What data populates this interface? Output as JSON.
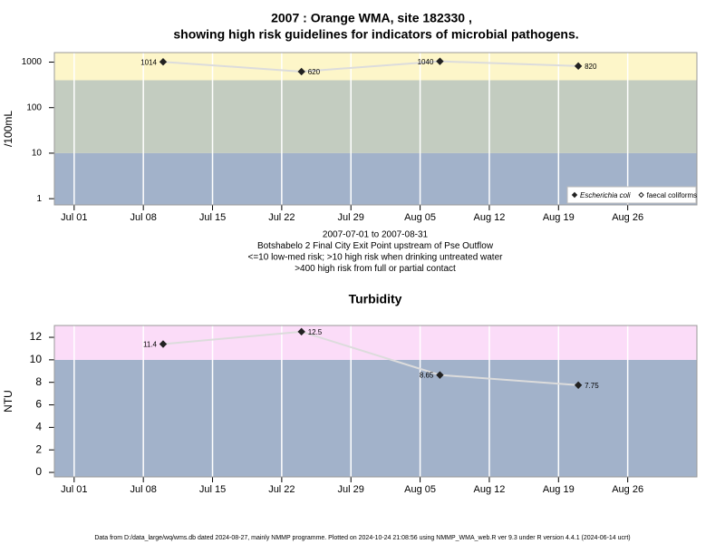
{
  "chart_data": [
    {
      "type": "line",
      "title": "2007 : Orange WMA, site 182330 ,",
      "subtitle": "showing high risk guidelines for indicators of microbial pathogens.",
      "y_label": "/100mL",
      "log_y": true,
      "x": [
        "2007-07-10",
        "2007-07-24",
        "2007-08-07",
        "2007-08-21"
      ],
      "xlim": [
        "2007-06-29",
        "2007-09-02"
      ],
      "xticks": [
        {
          "value": "2007-07-01",
          "label": "Jul 01"
        },
        {
          "value": "2007-07-08",
          "label": "Jul 08"
        },
        {
          "value": "2007-07-15",
          "label": "Jul 15"
        },
        {
          "value": "2007-07-22",
          "label": "Jul 22"
        },
        {
          "value": "2007-07-29",
          "label": "Jul 29"
        },
        {
          "value": "2007-08-05",
          "label": "Aug 05"
        },
        {
          "value": "2007-08-12",
          "label": "Aug 12"
        },
        {
          "value": "2007-08-19",
          "label": "Aug 19"
        },
        {
          "value": "2007-08-26",
          "label": "Aug 26"
        }
      ],
      "ylim": [
        0.73,
        1620
      ],
      "yticks": [
        1,
        10,
        100,
        1000
      ],
      "grid_x": true,
      "bands": [
        {
          "max": 10,
          "color": "#a2b2ca"
        },
        {
          "min": 10,
          "max": 400,
          "color": "#c3ccc0"
        },
        {
          "min": 400,
          "color": "#fdf6c9"
        }
      ],
      "line_color": "#dcdcdc",
      "legend": "lower right",
      "series": [
        {
          "name": "Escherichia coli",
          "color": "#222222",
          "marker_fill": true,
          "values": [
            1014,
            620,
            1040,
            820
          ]
        },
        {
          "name": "faecal coliforms",
          "color": "#222222",
          "marker_fill": false,
          "values": [
            null,
            null,
            null,
            null
          ]
        }
      ],
      "notes": [
        "2007-07-01 to 2007-08-31",
        "Botshabelo 2 Final City Exit Point upstream of Pse Outflow",
        "<=10 low-med risk; >10 high risk when drinking untreated water",
        ">400 high risk from full or partial contact"
      ]
    },
    {
      "type": "line",
      "title": "Turbidity",
      "y_label": "NTU",
      "log_y": false,
      "x": [
        "2007-07-10",
        "2007-07-24",
        "2007-08-07",
        "2007-08-21"
      ],
      "xlim": [
        "2007-06-29",
        "2007-09-02"
      ],
      "xticks": [
        {
          "value": "2007-07-01",
          "label": "Jul 01"
        },
        {
          "value": "2007-07-08",
          "label": "Jul 08"
        },
        {
          "value": "2007-07-15",
          "label": "Jul 15"
        },
        {
          "value": "2007-07-22",
          "label": "Jul 22"
        },
        {
          "value": "2007-07-29",
          "label": "Jul 29"
        },
        {
          "value": "2007-08-05",
          "label": "Aug 05"
        },
        {
          "value": "2007-08-12",
          "label": "Aug 12"
        },
        {
          "value": "2007-08-19",
          "label": "Aug 19"
        },
        {
          "value": "2007-08-26",
          "label": "Aug 26"
        }
      ],
      "ylim": [
        -0.4,
        13.05
      ],
      "yticks": [
        0,
        2,
        4,
        6,
        8,
        10,
        12
      ],
      "grid_x": true,
      "bands": [
        {
          "max": 10,
          "color": "#a2b2ca"
        },
        {
          "min": 10,
          "color": "#fbdcf8"
        }
      ],
      "line_color": "#dcdcdc",
      "series": [
        {
          "name": "Turbidity",
          "color": "#222222",
          "marker_fill": true,
          "values": [
            11.4,
            12.5,
            8.65,
            7.75
          ]
        }
      ]
    }
  ],
  "footer": "Data from D:/data_large/wq/wms.db dated 2024-08-27, mainly NMMP programme. Plotted on 2024-10-24 21:08:56 using NMMP_WMA_web.R ver 9.3 under R version 4.4.1 (2024-06-14 ucrt)"
}
